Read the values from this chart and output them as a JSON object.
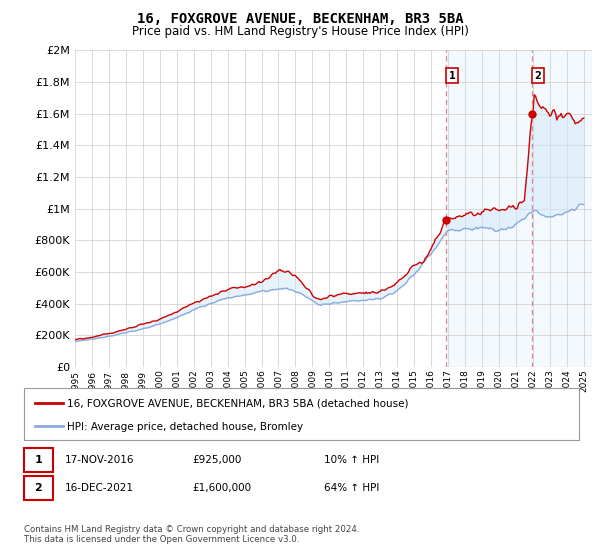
{
  "title": "16, FOXGROVE AVENUE, BECKENHAM, BR3 5BA",
  "subtitle": "Price paid vs. HM Land Registry's House Price Index (HPI)",
  "legend_line1": "16, FOXGROVE AVENUE, BECKENHAM, BR3 5BA (detached house)",
  "legend_line2": "HPI: Average price, detached house, Bromley",
  "sale1_date": "17-NOV-2016",
  "sale1_price": "£925,000",
  "sale1_hpi": "10% ↑ HPI",
  "sale2_date": "16-DEC-2021",
  "sale2_price": "£1,600,000",
  "sale2_hpi": "64% ↑ HPI",
  "footer": "Contains HM Land Registry data © Crown copyright and database right 2024.\nThis data is licensed under the Open Government Licence v3.0.",
  "red_color": "#cc0000",
  "blue_color": "#88aadd",
  "fill_color": "#d0e8f8",
  "grid_color": "#cccccc",
  "background_color": "#ffffff",
  "ylim": [
    0,
    2000000
  ],
  "xlim_start": 1995.0,
  "xlim_end": 2025.5,
  "sale1_year": 2016.88,
  "sale2_year": 2021.96,
  "sale1_value": 925000,
  "sale2_value": 1600000
}
